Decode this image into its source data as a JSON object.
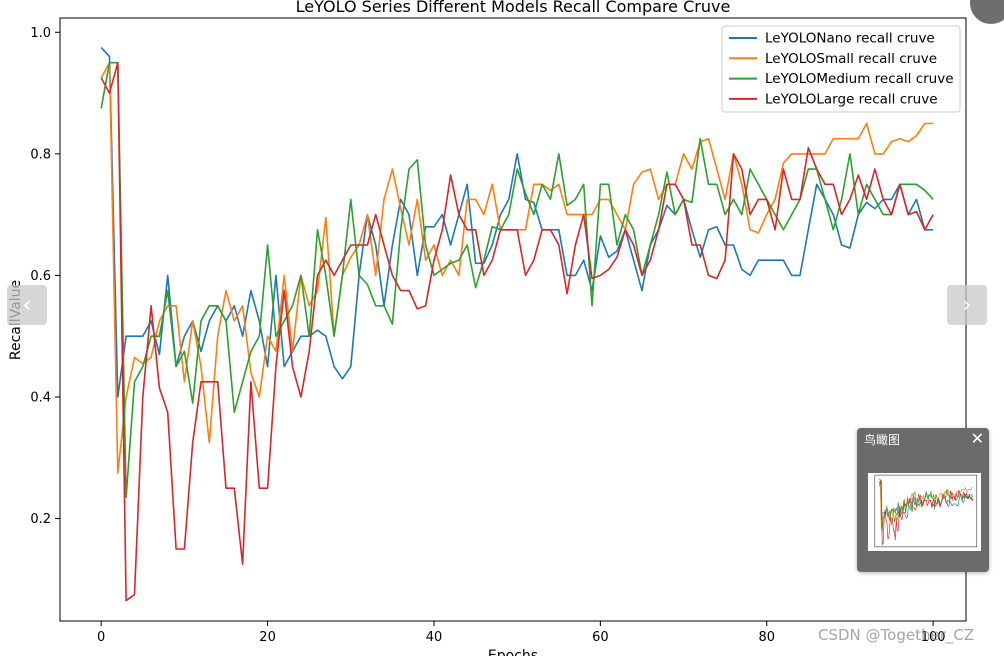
{
  "chart_data": {
    "type": "line",
    "title": "LeYOLO Series Different Models Recall Compare Cruve",
    "xlabel": "Epochs",
    "ylabel": "RecallValue",
    "xlim": [
      -4.95,
      103.95
    ],
    "ylim": [
      0.0315,
      1.0235
    ],
    "xticks": [
      0,
      20,
      40,
      60,
      80,
      100
    ],
    "yticks": [
      0.2,
      0.4,
      0.6,
      0.8,
      1.0
    ],
    "legend_position": "top-right",
    "grid": false,
    "series": [
      {
        "name": "LeYOLONano recall cruve",
        "color": "#1f77b4",
        "values": [
          0.975,
          0.96,
          0.4,
          0.5,
          0.5,
          0.5,
          0.525,
          0.47,
          0.6,
          0.45,
          0.5,
          0.525,
          0.475,
          0.525,
          0.55,
          0.525,
          0.55,
          0.5,
          0.575,
          0.525,
          0.45,
          0.6,
          0.45,
          0.475,
          0.5,
          0.5,
          0.51,
          0.5,
          0.45,
          0.43,
          0.45,
          0.6,
          0.7,
          0.65,
          0.55,
          0.65,
          0.725,
          0.7,
          0.6,
          0.68,
          0.68,
          0.7,
          0.65,
          0.7,
          0.75,
          0.62,
          0.62,
          0.65,
          0.7,
          0.725,
          0.8,
          0.725,
          0.72,
          0.675,
          0.675,
          0.675,
          0.6,
          0.6,
          0.625,
          0.575,
          0.665,
          0.63,
          0.64,
          0.675,
          0.625,
          0.575,
          0.65,
          0.675,
          0.715,
          0.7,
          0.725,
          0.675,
          0.63,
          0.675,
          0.68,
          0.65,
          0.65,
          0.61,
          0.6,
          0.625,
          0.625,
          0.625,
          0.625,
          0.6,
          0.6,
          0.675,
          0.75,
          0.725,
          0.7,
          0.65,
          0.645,
          0.7,
          0.72,
          0.71,
          0.725,
          0.725,
          0.75,
          0.7,
          0.725,
          0.675,
          0.675
        ]
      },
      {
        "name": "LeYOLOSmall recall cruve",
        "color": "#ff7f0e",
        "values": [
          0.925,
          0.95,
          0.275,
          0.4,
          0.465,
          0.455,
          0.465,
          0.525,
          0.55,
          0.55,
          0.425,
          0.525,
          0.45,
          0.325,
          0.5,
          0.575,
          0.525,
          0.55,
          0.44,
          0.4,
          0.5,
          0.475,
          0.6,
          0.475,
          0.6,
          0.55,
          0.575,
          0.695,
          0.5,
          0.6,
          0.63,
          0.65,
          0.7,
          0.6,
          0.725,
          0.775,
          0.71,
          0.65,
          0.725,
          0.625,
          0.65,
          0.6,
          0.625,
          0.6,
          0.725,
          0.725,
          0.7,
          0.75,
          0.675,
          0.675,
          0.675,
          0.675,
          0.75,
          0.75,
          0.74,
          0.75,
          0.7,
          0.7,
          0.7,
          0.7,
          0.725,
          0.725,
          0.7,
          0.675,
          0.75,
          0.77,
          0.775,
          0.725,
          0.75,
          0.75,
          0.8,
          0.775,
          0.82,
          0.825,
          0.775,
          0.725,
          0.8,
          0.75,
          0.675,
          0.67,
          0.7,
          0.725,
          0.785,
          0.8,
          0.8,
          0.8,
          0.8,
          0.8,
          0.825,
          0.825,
          0.825,
          0.825,
          0.85,
          0.8,
          0.8,
          0.82,
          0.825,
          0.82,
          0.83,
          0.85,
          0.85
        ]
      },
      {
        "name": "LeYOLOMedium recall cruve",
        "color": "#2ca02c",
        "values": [
          0.875,
          0.95,
          0.95,
          0.235,
          0.425,
          0.45,
          0.5,
          0.5,
          0.575,
          0.45,
          0.475,
          0.39,
          0.525,
          0.55,
          0.55,
          0.525,
          0.375,
          0.425,
          0.475,
          0.5,
          0.65,
          0.5,
          0.525,
          0.55,
          0.6,
          0.5,
          0.675,
          0.6,
          0.5,
          0.6,
          0.725,
          0.6,
          0.585,
          0.55,
          0.55,
          0.52,
          0.675,
          0.775,
          0.79,
          0.65,
          0.6,
          0.61,
          0.62,
          0.625,
          0.65,
          0.58,
          0.625,
          0.68,
          0.675,
          0.7,
          0.775,
          0.735,
          0.7,
          0.75,
          0.725,
          0.8,
          0.715,
          0.725,
          0.75,
          0.55,
          0.75,
          0.75,
          0.65,
          0.7,
          0.675,
          0.6,
          0.65,
          0.7,
          0.77,
          0.7,
          0.725,
          0.72,
          0.825,
          0.75,
          0.75,
          0.7,
          0.725,
          0.7,
          0.775,
          0.75,
          0.725,
          0.7,
          0.675,
          0.7,
          0.725,
          0.775,
          0.775,
          0.725,
          0.675,
          0.725,
          0.8,
          0.7,
          0.75,
          0.725,
          0.7,
          0.7,
          0.75,
          0.75,
          0.75,
          0.74,
          0.725
        ]
      },
      {
        "name": "LeYOLOLarge recall cruve",
        "color": "#d62728",
        "values": [
          0.925,
          0.9,
          0.95,
          0.065,
          0.075,
          0.4,
          0.55,
          0.415,
          0.375,
          0.15,
          0.15,
          0.325,
          0.425,
          0.425,
          0.425,
          0.25,
          0.25,
          0.125,
          0.425,
          0.25,
          0.25,
          0.45,
          0.575,
          0.45,
          0.4,
          0.475,
          0.6,
          0.625,
          0.6,
          0.625,
          0.65,
          0.65,
          0.65,
          0.7,
          0.65,
          0.6,
          0.575,
          0.575,
          0.545,
          0.55,
          0.625,
          0.675,
          0.765,
          0.7,
          0.675,
          0.675,
          0.6,
          0.625,
          0.675,
          0.675,
          0.675,
          0.6,
          0.625,
          0.675,
          0.675,
          0.65,
          0.57,
          0.65,
          0.7,
          0.595,
          0.6,
          0.61,
          0.63,
          0.675,
          0.65,
          0.6,
          0.625,
          0.675,
          0.75,
          0.75,
          0.725,
          0.65,
          0.65,
          0.6,
          0.595,
          0.625,
          0.8,
          0.775,
          0.7,
          0.725,
          0.725,
          0.675,
          0.775,
          0.725,
          0.725,
          0.81,
          0.775,
          0.75,
          0.75,
          0.7,
          0.725,
          0.765,
          0.725,
          0.775,
          0.725,
          0.7,
          0.75,
          0.7,
          0.705,
          0.675,
          0.7
        ]
      }
    ]
  },
  "ui": {
    "prev_label": "‹",
    "next_label": "›",
    "overview_title": "鸟瞰图",
    "overview_close": "✕",
    "watermark": "CSDN @Together_CZ"
  }
}
